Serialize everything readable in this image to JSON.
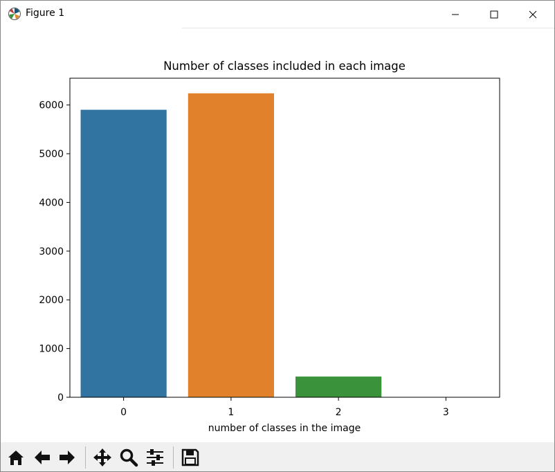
{
  "window": {
    "title": "Figure 1",
    "app_icon": "matplotlib-icon",
    "controls": {
      "minimize": "minimize-icon",
      "maximize": "maximize-icon",
      "close": "close-icon"
    }
  },
  "toolbar": {
    "buttons": [
      {
        "name": "home",
        "icon": "home-icon"
      },
      {
        "name": "back",
        "icon": "arrow-left-icon"
      },
      {
        "name": "forward",
        "icon": "arrow-right-icon"
      },
      {
        "name": "pan",
        "icon": "move-icon"
      },
      {
        "name": "zoom",
        "icon": "magnifier-icon"
      },
      {
        "name": "configure-subplots",
        "icon": "sliders-icon"
      },
      {
        "name": "save",
        "icon": "floppy-icon"
      }
    ]
  },
  "chart_data": {
    "type": "bar",
    "title": "Number of classes included in each image",
    "xlabel": "number of classes in the image",
    "ylabel": "",
    "categories": [
      "0",
      "1",
      "2",
      "3"
    ],
    "values": [
      5902,
      6240,
      425,
      2
    ],
    "colors": [
      "#3274a1",
      "#e1812c",
      "#3a923a",
      "#c03d3e"
    ],
    "ylim": [
      0,
      6550
    ],
    "yticks": [
      0,
      1000,
      2000,
      3000,
      4000,
      5000,
      6000
    ],
    "grid": false,
    "legend": "none"
  }
}
